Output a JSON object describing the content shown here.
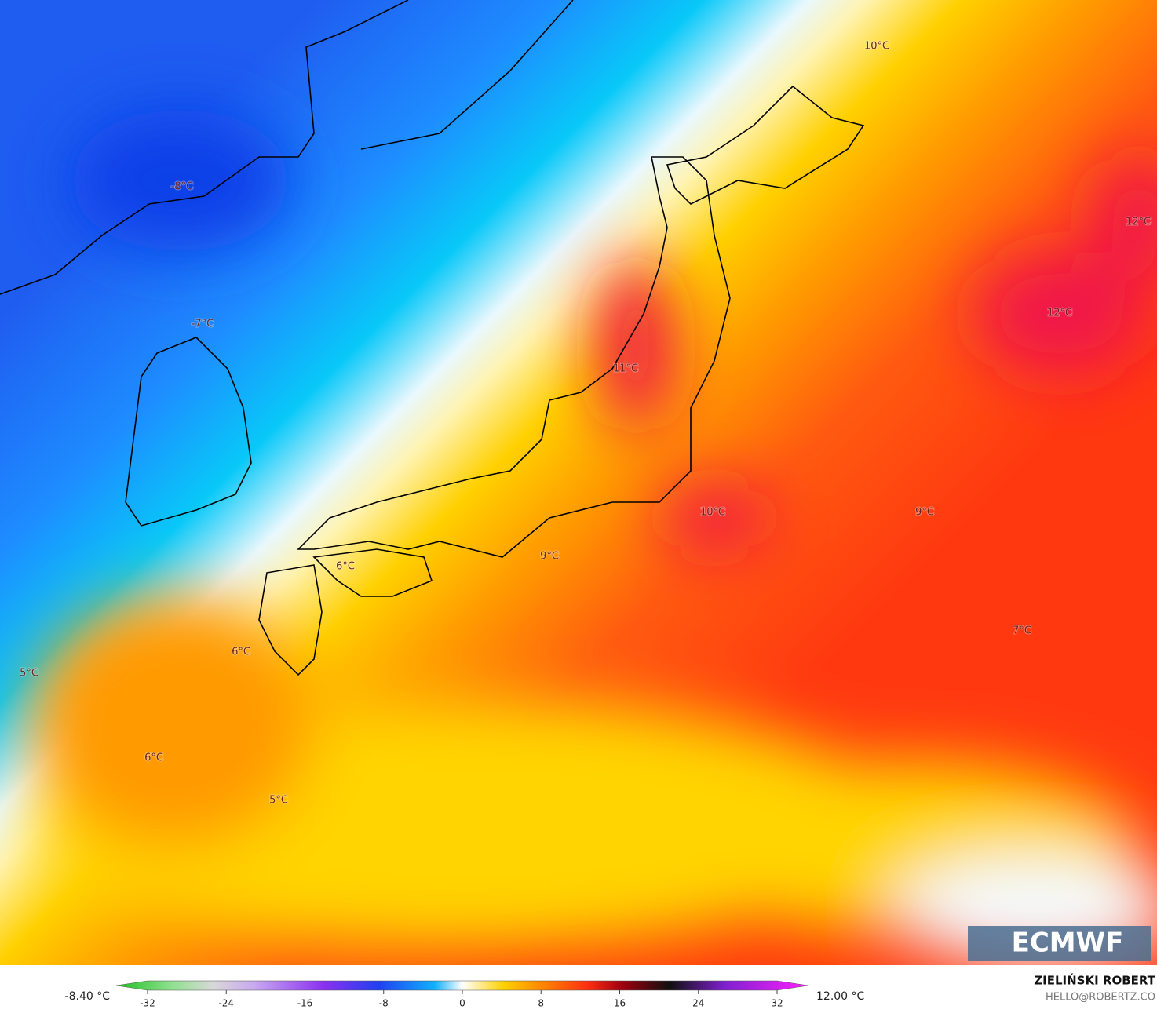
{
  "map": {
    "labels": [
      "10°C",
      "-8°C",
      "12°C",
      "12°C",
      "-7°C",
      "11°C",
      "10°C",
      "9°C",
      "9°C",
      "6°C",
      "7°C",
      "6°C",
      "5°C",
      "6°C",
      "5°C"
    ]
  },
  "logo": "ECMWF",
  "legend": {
    "min": "-8.40 °C",
    "max": "12.00 °C",
    "ticks": [
      -32,
      -24,
      -16,
      -8,
      0,
      8,
      16,
      24,
      32
    ]
  },
  "author": {
    "name": "ZIELIŃSKI ROBERT",
    "email": "HELLO@ROBERTZ.CO"
  }
}
